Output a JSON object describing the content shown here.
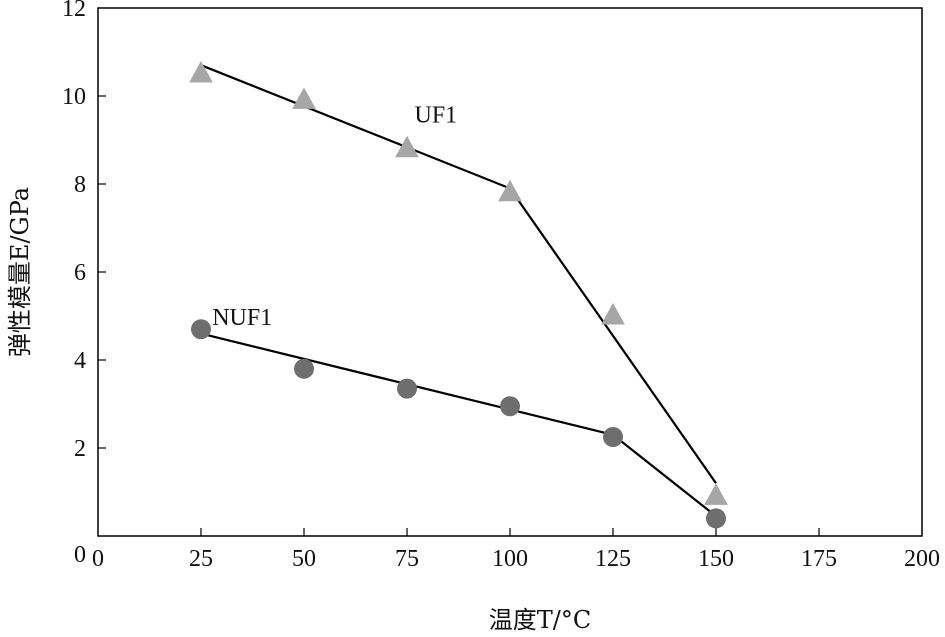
{
  "chart_data": {
    "type": "scatter",
    "xlabel": "温度T/°C",
    "ylabel": "弹性模量E/GPa",
    "xlim": [
      0,
      200
    ],
    "ylim": [
      0,
      12
    ],
    "x_ticks": [
      0,
      25,
      50,
      75,
      100,
      125,
      150,
      175,
      200
    ],
    "y_ticks": [
      0,
      2,
      4,
      6,
      8,
      10,
      12
    ],
    "grid": false,
    "series": [
      {
        "name": "UF1",
        "marker": "triangle",
        "color": "#a6a6a6",
        "points": [
          {
            "x": 25,
            "y": 10.5
          },
          {
            "x": 50,
            "y": 9.9
          },
          {
            "x": 75,
            "y": 8.8
          },
          {
            "x": 100,
            "y": 7.8
          },
          {
            "x": 125,
            "y": 5.0
          },
          {
            "x": 150,
            "y": 0.9
          }
        ],
        "fit_lines": [
          [
            {
              "x": 25,
              "y": 10.7
            },
            {
              "x": 100,
              "y": 7.9
            }
          ],
          [
            {
              "x": 100,
              "y": 7.9
            },
            {
              "x": 150,
              "y": 1.2
            }
          ]
        ]
      },
      {
        "name": "NUF1",
        "marker": "circle",
        "color": "#6e6e6e",
        "points": [
          {
            "x": 25,
            "y": 4.7
          },
          {
            "x": 50,
            "y": 3.8
          },
          {
            "x": 75,
            "y": 3.35
          },
          {
            "x": 100,
            "y": 2.95
          },
          {
            "x": 125,
            "y": 2.25
          },
          {
            "x": 150,
            "y": 0.4
          }
        ],
        "fit_lines": [
          [
            {
              "x": 25,
              "y": 4.6
            },
            {
              "x": 125,
              "y": 2.3
            }
          ],
          [
            {
              "x": 125,
              "y": 2.3
            },
            {
              "x": 150,
              "y": 0.45
            }
          ]
        ]
      }
    ],
    "annotations": [
      {
        "text": "UF1",
        "x": 82,
        "y": 9.4
      },
      {
        "text": "NUF1",
        "x": 35,
        "y": 4.8
      }
    ]
  }
}
